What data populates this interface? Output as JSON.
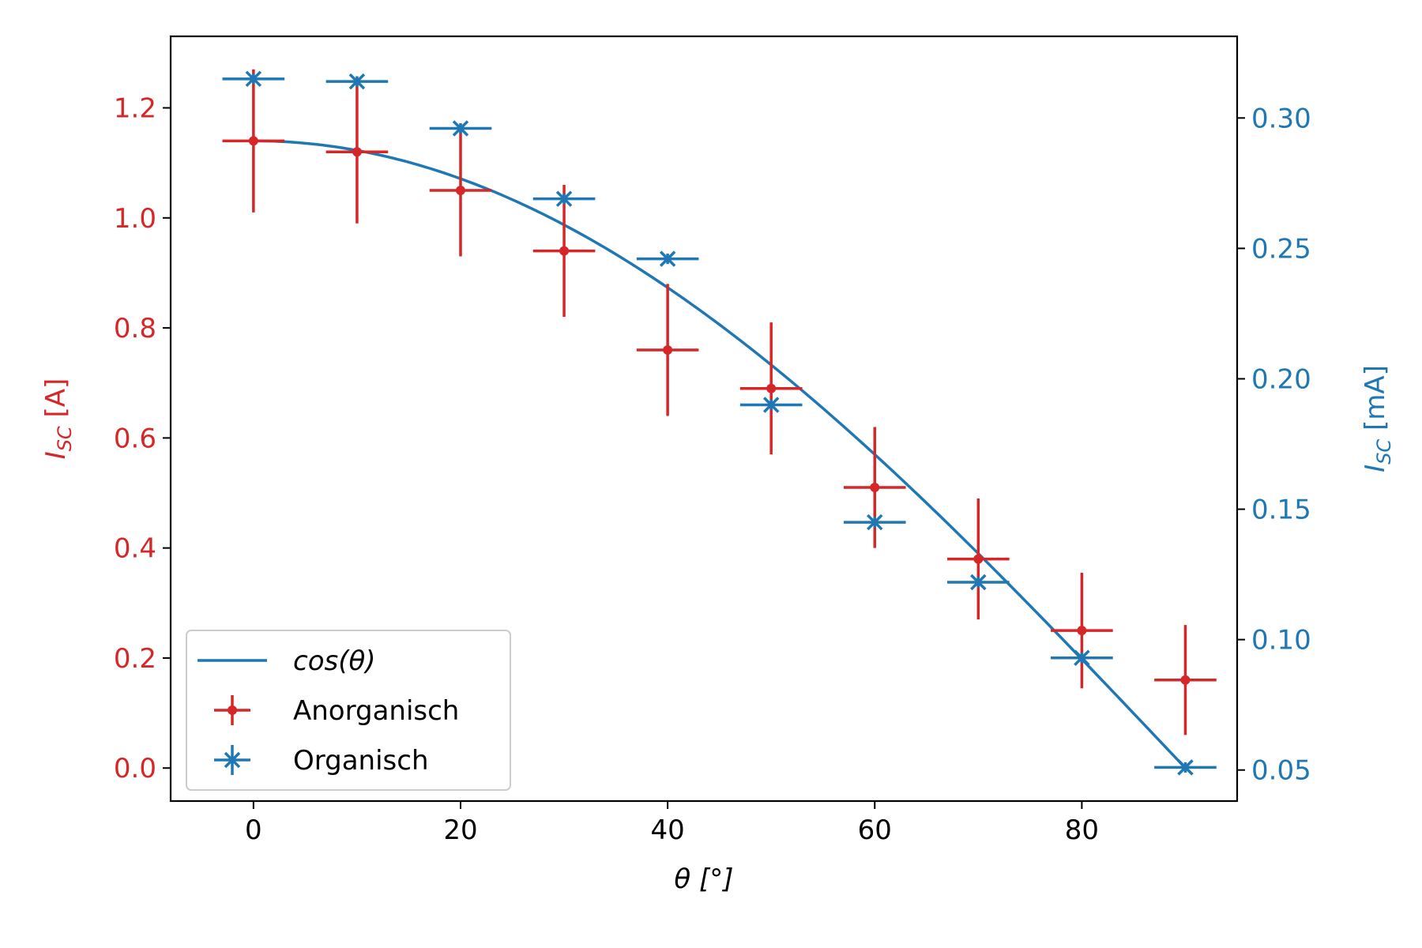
{
  "chart_data": {
    "type": "scatter",
    "xlabel": "θ [°]",
    "xlim": [
      -8,
      95
    ],
    "x_ticks": [
      0,
      20,
      40,
      60,
      80
    ],
    "x_tick_labels": [
      "0",
      "20",
      "40",
      "60",
      "80"
    ],
    "y_left": {
      "label_main": "I",
      "label_sub": "SC",
      "label_unit": " [A]",
      "ylim": [
        -0.06,
        1.33
      ],
      "ticks": [
        0.0,
        0.2,
        0.4,
        0.6,
        0.8,
        1.0,
        1.2
      ],
      "tick_labels": [
        "0.0",
        "0.2",
        "0.4",
        "0.6",
        "0.8",
        "1.0",
        "1.2"
      ],
      "color": "#d62728"
    },
    "y_right": {
      "label_main": "I",
      "label_sub": "SC",
      "label_unit": " [mA]",
      "ylim": [
        0.0381,
        0.3313
      ],
      "ticks": [
        0.05,
        0.1,
        0.15,
        0.2,
        0.25,
        0.3
      ],
      "tick_labels": [
        "0.05",
        "0.10",
        "0.15",
        "0.20",
        "0.25",
        "0.30"
      ],
      "color": "#1f77b4"
    },
    "grid": false,
    "legend_position": "lower-left",
    "series": [
      {
        "name": "cos(θ)",
        "kind": "line",
        "axis": "left",
        "function": "1.14*cos(x)",
        "x_range": [
          0,
          90
        ],
        "color": "#1f77b4"
      },
      {
        "name": "Anorganisch",
        "kind": "errorbar",
        "axis": "left",
        "marker": "dot",
        "color": "#d62728",
        "x": [
          0,
          10,
          20,
          30,
          40,
          50,
          60,
          70,
          80,
          90
        ],
        "y": [
          1.14,
          1.12,
          1.05,
          0.94,
          0.76,
          0.69,
          0.51,
          0.38,
          0.25,
          0.16
        ],
        "xerr": 3,
        "yerr": [
          0.13,
          0.13,
          0.12,
          0.12,
          0.12,
          0.12,
          0.11,
          0.11,
          0.105,
          0.1
        ]
      },
      {
        "name": "Organisch",
        "kind": "errorbar",
        "axis": "right",
        "marker": "x",
        "color": "#1f77b4",
        "x": [
          0,
          10,
          20,
          30,
          40,
          50,
          60,
          70,
          80,
          90
        ],
        "y": [
          0.315,
          0.314,
          0.296,
          0.269,
          0.246,
          0.19,
          0.145,
          0.122,
          0.093,
          0.051
        ],
        "xerr": 3,
        "yerr": [
          0.002,
          0.002,
          0.002,
          0.002,
          0.002,
          0.002,
          0.002,
          0.002,
          0.002,
          0.002
        ]
      }
    ]
  }
}
